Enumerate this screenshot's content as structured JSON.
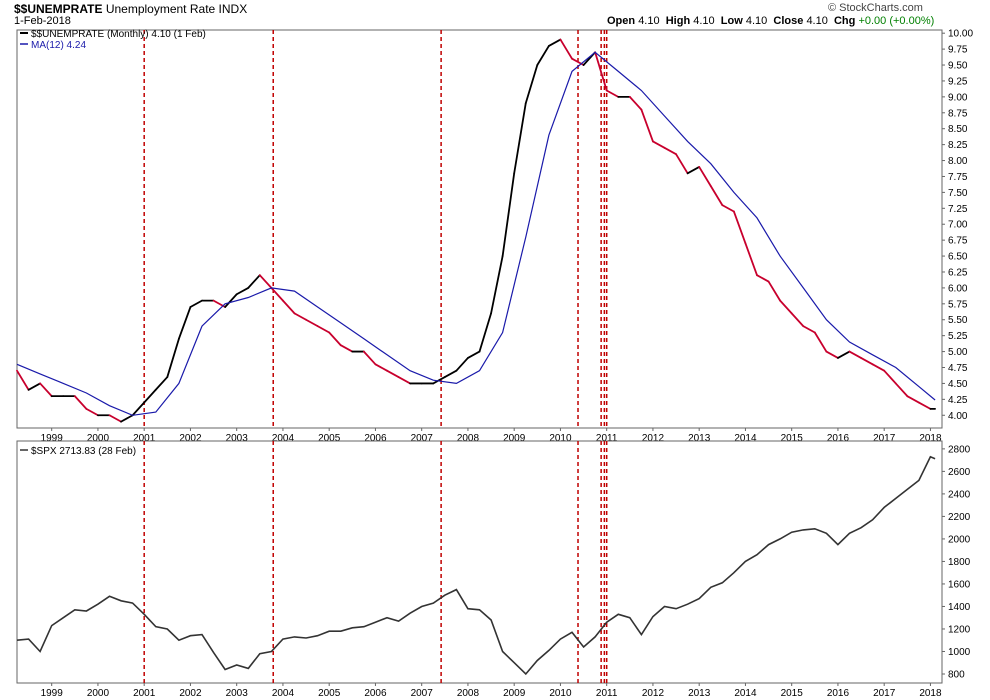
{
  "header": {
    "symbol": "$$UNEMPRATE",
    "name": "Unemployment Rate",
    "exchange": "INDX",
    "date": "1-Feb-2018",
    "brand": "© StockCharts.com",
    "open_label": "Open",
    "open": "4.10",
    "high_label": "High",
    "high": "4.10",
    "low_label": "Low",
    "low": "4.10",
    "close_label": "Close",
    "close": "4.10",
    "chg_label": "Chg",
    "chg": "+0.00 (+0.00%)",
    "chg_color": "#008000"
  },
  "legend": {
    "unemp": "$$UNEMPRATE (Monthly) 4.10 (1 Feb)",
    "ma": "MA(12) 4.24",
    "spx": "$SPX 2713.83 (28 Feb)"
  },
  "colors": {
    "up": "#000000",
    "down": "#c8002d",
    "ma": "#1a1aaa",
    "marker": "#c00000",
    "spx": "#333333"
  },
  "chart_data": [
    {
      "type": "line",
      "title": "$$UNEMPRATE Unemployment Rate INDX",
      "x_ticks": [
        "1999",
        "2000",
        "2001",
        "2002",
        "2003",
        "2004",
        "2005",
        "2006",
        "2007",
        "2008",
        "2009",
        "2010",
        "2011",
        "2012",
        "2013",
        "2014",
        "2015",
        "2016",
        "2017",
        "2018"
      ],
      "ylim": [
        3.8,
        10.05
      ],
      "y_ticks": [
        "4.00",
        "4.25",
        "4.50",
        "4.75",
        "5.00",
        "5.25",
        "5.50",
        "5.75",
        "6.00",
        "6.25",
        "6.50",
        "6.75",
        "7.00",
        "7.25",
        "7.50",
        "7.75",
        "8.00",
        "8.25",
        "8.50",
        "8.75",
        "9.00",
        "9.25",
        "9.50",
        "9.75",
        "10.00"
      ],
      "series": [
        {
          "name": "$$UNEMPRATE (Monthly)",
          "x": [
            1998.25,
            1998.5,
            1998.75,
            1999.0,
            1999.25,
            1999.5,
            1999.75,
            2000.0,
            2000.25,
            2000.5,
            2000.75,
            2001.0,
            2001.25,
            2001.5,
            2001.75,
            2002.0,
            2002.25,
            2002.5,
            2002.75,
            2003.0,
            2003.25,
            2003.5,
            2003.75,
            2004.0,
            2004.25,
            2004.5,
            2004.75,
            2005.0,
            2005.25,
            2005.5,
            2005.75,
            2006.0,
            2006.25,
            2006.5,
            2006.75,
            2007.0,
            2007.25,
            2007.5,
            2007.75,
            2008.0,
            2008.25,
            2008.5,
            2008.75,
            2009.0,
            2009.25,
            2009.5,
            2009.75,
            2010.0,
            2010.25,
            2010.5,
            2010.75,
            2011.0,
            2011.25,
            2011.5,
            2011.75,
            2012.0,
            2012.25,
            2012.5,
            2012.75,
            2013.0,
            2013.25,
            2013.5,
            2013.75,
            2014.0,
            2014.25,
            2014.5,
            2014.75,
            2015.0,
            2015.25,
            2015.5,
            2015.75,
            2016.0,
            2016.25,
            2016.5,
            2016.75,
            2017.0,
            2017.25,
            2017.5,
            2017.75,
            2018.0,
            2018.1
          ],
          "values": [
            4.7,
            4.4,
            4.5,
            4.3,
            4.3,
            4.3,
            4.1,
            4.0,
            4.0,
            3.9,
            4.0,
            4.2,
            4.4,
            4.6,
            5.2,
            5.7,
            5.8,
            5.8,
            5.7,
            5.9,
            6.0,
            6.2,
            6.0,
            5.8,
            5.6,
            5.5,
            5.4,
            5.3,
            5.1,
            5.0,
            5.0,
            4.8,
            4.7,
            4.6,
            4.5,
            4.5,
            4.5,
            4.6,
            4.7,
            4.9,
            5.0,
            5.6,
            6.5,
            7.8,
            8.9,
            9.5,
            9.8,
            9.9,
            9.6,
            9.5,
            9.7,
            9.1,
            9.0,
            9.0,
            8.8,
            8.3,
            8.2,
            8.1,
            7.8,
            7.9,
            7.6,
            7.3,
            7.2,
            6.7,
            6.2,
            6.1,
            5.8,
            5.6,
            5.4,
            5.3,
            5.0,
            4.9,
            5.0,
            4.9,
            4.8,
            4.7,
            4.5,
            4.3,
            4.2,
            4.1,
            4.1
          ]
        },
        {
          "name": "MA(12)",
          "x": [
            1998.25,
            1998.75,
            1999.25,
            1999.75,
            2000.25,
            2000.75,
            2001.25,
            2001.75,
            2002.25,
            2002.75,
            2003.25,
            2003.75,
            2004.25,
            2004.75,
            2005.25,
            2005.75,
            2006.25,
            2006.75,
            2007.25,
            2007.75,
            2008.25,
            2008.75,
            2009.25,
            2009.75,
            2010.25,
            2010.75,
            2011.25,
            2011.75,
            2012.25,
            2012.75,
            2013.25,
            2013.75,
            2014.25,
            2014.75,
            2015.25,
            2015.75,
            2016.25,
            2016.75,
            2017.25,
            2017.75,
            2018.1
          ],
          "values": [
            4.8,
            4.65,
            4.5,
            4.35,
            4.15,
            4.0,
            4.05,
            4.5,
            5.4,
            5.75,
            5.85,
            6.0,
            5.95,
            5.7,
            5.45,
            5.2,
            4.95,
            4.7,
            4.55,
            4.5,
            4.7,
            5.3,
            6.8,
            8.4,
            9.4,
            9.7,
            9.4,
            9.1,
            8.7,
            8.3,
            7.95,
            7.5,
            7.1,
            6.5,
            6.0,
            5.5,
            5.15,
            4.95,
            4.75,
            4.45,
            4.24
          ]
        }
      ],
      "markers": [
        2001.0,
        2003.79,
        2007.42,
        2010.38,
        2010.88,
        2010.95,
        2011.0
      ]
    },
    {
      "type": "line",
      "title": "$SPX",
      "x_ticks": [
        "1999",
        "2000",
        "2001",
        "2002",
        "2003",
        "2004",
        "2005",
        "2006",
        "2007",
        "2008",
        "2009",
        "2010",
        "2011",
        "2012",
        "2013",
        "2014",
        "2015",
        "2016",
        "2017",
        "2018"
      ],
      "ylim": [
        720,
        2870
      ],
      "y_ticks": [
        "800",
        "1000",
        "1200",
        "1400",
        "1600",
        "1800",
        "2000",
        "2200",
        "2400",
        "2600",
        "2800"
      ],
      "series": [
        {
          "name": "$SPX",
          "x": [
            1998.25,
            1998.5,
            1998.75,
            1999.0,
            1999.25,
            1999.5,
            1999.75,
            2000.0,
            2000.25,
            2000.5,
            2000.75,
            2001.0,
            2001.25,
            2001.5,
            2001.75,
            2002.0,
            2002.25,
            2002.5,
            2002.75,
            2003.0,
            2003.25,
            2003.5,
            2003.75,
            2004.0,
            2004.25,
            2004.5,
            2004.75,
            2005.0,
            2005.25,
            2005.5,
            2005.75,
            2006.0,
            2006.25,
            2006.5,
            2006.75,
            2007.0,
            2007.25,
            2007.5,
            2007.75,
            2008.0,
            2008.25,
            2008.5,
            2008.75,
            2009.0,
            2009.25,
            2009.5,
            2009.75,
            2010.0,
            2010.25,
            2010.5,
            2010.75,
            2011.0,
            2011.25,
            2011.5,
            2011.75,
            2012.0,
            2012.25,
            2012.5,
            2012.75,
            2013.0,
            2013.25,
            2013.5,
            2013.75,
            2014.0,
            2014.25,
            2014.5,
            2014.75,
            2015.0,
            2015.25,
            2015.5,
            2015.75,
            2016.0,
            2016.25,
            2016.5,
            2016.75,
            2017.0,
            2017.25,
            2017.5,
            2017.75,
            2018.0,
            2018.1
          ],
          "values": [
            1100,
            1110,
            1000,
            1230,
            1300,
            1370,
            1360,
            1420,
            1490,
            1450,
            1430,
            1330,
            1220,
            1200,
            1100,
            1140,
            1150,
            990,
            840,
            880,
            850,
            980,
            1000,
            1110,
            1130,
            1120,
            1140,
            1180,
            1180,
            1210,
            1220,
            1260,
            1300,
            1270,
            1340,
            1400,
            1430,
            1500,
            1550,
            1380,
            1370,
            1280,
            1000,
            900,
            800,
            920,
            1010,
            1110,
            1170,
            1040,
            1130,
            1260,
            1330,
            1300,
            1150,
            1310,
            1400,
            1380,
            1420,
            1470,
            1570,
            1610,
            1700,
            1800,
            1860,
            1950,
            2000,
            2060,
            2080,
            2090,
            2050,
            1950,
            2050,
            2100,
            2170,
            2280,
            2360,
            2440,
            2520,
            2730,
            2713
          ]
        }
      ],
      "markers": [
        2001.0,
        2003.79,
        2007.42,
        2010.38,
        2010.88,
        2010.95,
        2011.0
      ]
    }
  ]
}
